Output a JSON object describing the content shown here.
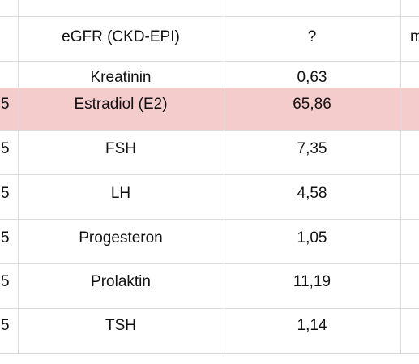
{
  "header": {
    "name": "eGFR (CKD-EPI)",
    "value": "?",
    "extra": "m"
  },
  "rows": [
    {
      "name": "Kreatinin",
      "value": "0,63"
    },
    {
      "prefix": "5",
      "name": "Estradiol (E2)",
      "value": "65,86"
    },
    {
      "prefix": "5",
      "name": "FSH",
      "value": "7,35"
    },
    {
      "prefix": "5",
      "name": "LH",
      "value": "4,58"
    },
    {
      "prefix": "5",
      "name": "Progesteron",
      "value": "1,05"
    },
    {
      "prefix": "5",
      "name": "Prolaktin",
      "value": "11,19"
    },
    {
      "prefix": "5",
      "name": "TSH",
      "value": "1,14"
    }
  ]
}
